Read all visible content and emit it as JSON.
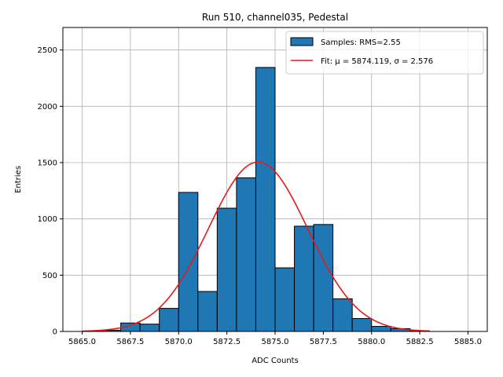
{
  "chart_data": {
    "type": "bar",
    "title": "Run 510, channel035, Pedestal",
    "xlabel": "ADC Counts",
    "ylabel": "Entries",
    "xlim": [
      5864.0,
      5886.0
    ],
    "ylim": [
      0,
      2700
    ],
    "xticks": [
      5865.0,
      5867.5,
      5870.0,
      5872.5,
      5875.0,
      5877.5,
      5880.0,
      5882.5,
      5885.0
    ],
    "xtick_labels": [
      "5865.0",
      "5867.5",
      "5870.0",
      "5872.5",
      "5875.0",
      "5877.5",
      "5880.0",
      "5882.5",
      "5885.0"
    ],
    "yticks": [
      0,
      500,
      1000,
      1500,
      2000,
      2500
    ],
    "ytick_labels": [
      "0",
      "500",
      "1000",
      "1500",
      "2000",
      "2500"
    ],
    "grid": true,
    "legend_position": "top-right",
    "series": [
      {
        "name": "Samples: RMS=2.55",
        "type": "histogram",
        "color": "#1f77b4",
        "edge_color": "#000000",
        "bin_edges": [
          5866.0,
          5867.0,
          5868.0,
          5869.0,
          5870.0,
          5871.0,
          5872.0,
          5873.0,
          5874.0,
          5875.0,
          5876.0,
          5877.0,
          5878.0,
          5879.0,
          5880.0,
          5881.0,
          5882.0,
          5883.0
        ],
        "values": [
          10,
          75,
          65,
          205,
          1235,
          355,
          1095,
          1365,
          2345,
          565,
          935,
          950,
          290,
          115,
          45,
          25,
          5
        ]
      },
      {
        "name": "Fit: μ = 5874.119, σ = 2.576",
        "type": "gaussian",
        "color": "#e41a1c",
        "mu": 5874.119,
        "sigma": 2.576,
        "amplitude": 1505,
        "x_range": [
          5865.0,
          5883.0
        ]
      }
    ]
  }
}
